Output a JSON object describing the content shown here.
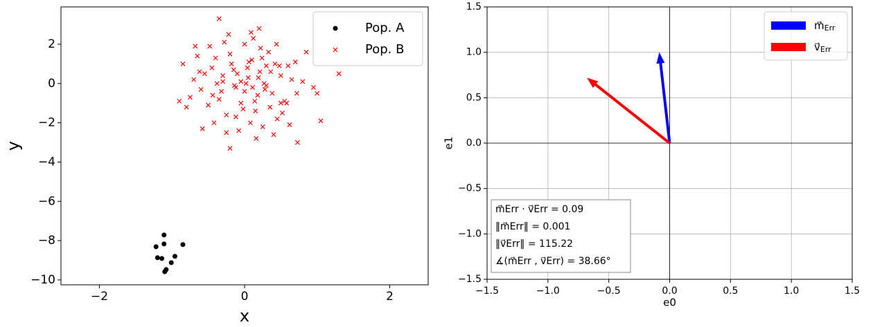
{
  "chart_data": [
    {
      "type": "scatter",
      "xlabel": "x",
      "ylabel": "y",
      "xlim": [
        -2.53,
        2.53
      ],
      "ylim": [
        -10.25,
        3.9
      ],
      "xticks": [
        {
          "value": -2,
          "label": "−2"
        },
        0,
        2
      ],
      "yticks": [
        {
          "value": -10,
          "label": "−10"
        },
        {
          "value": -8,
          "label": "−8"
        },
        {
          "value": -6,
          "label": "−6"
        },
        {
          "value": -4,
          "label": "−4"
        },
        {
          "value": -2,
          "label": "−2"
        },
        0,
        2
      ],
      "legend": "upper right",
      "grid": false,
      "series": [
        {
          "name": "Pop. A",
          "color": "#000000",
          "marker": "o",
          "x": [
            -1.22,
            -1.11,
            -1.11,
            -0.85,
            -1.2,
            -1.14,
            -0.96,
            -1.01,
            -1.08,
            -1.1
          ],
          "values": [
            -8.31,
            -7.71,
            -8.17,
            -8.2,
            -8.87,
            -8.91,
            -8.8,
            -9.12,
            -9.47,
            -9.58
          ]
        },
        {
          "name": "Pop. B",
          "color": "#ff0000",
          "marker": "x",
          "x": [
            0.05,
            -0.12,
            0.21,
            -0.3,
            0.38,
            -0.45,
            0.1,
            -0.05,
            0.27,
            -0.2,
            0.5,
            -0.6,
            0.15,
            -0.35,
            0.42,
            0.0,
            -0.1,
            0.3,
            -0.25,
            0.6,
            -0.7,
            0.08,
            0.22,
            -0.4,
            0.35,
            -0.15,
            0.18,
            -0.5,
            0.45,
            0.12,
            -0.08,
            0.55,
            -0.28,
            0.02,
            0.25,
            -0.55,
            0.65,
            -0.32,
            0.14,
            -0.18,
            0.33,
            -0.42,
            0.48,
            -0.02,
            0.09,
            -0.65,
            0.72,
            0.4,
            -0.22,
            0.06,
            -0.75,
            0.8,
            0.28,
            -0.38,
            0.52,
            -0.12,
            0.19,
            -0.48,
            0.0,
            0.36,
            -0.8,
            0.95,
            1.05,
            1.3,
            0.73,
            -0.35,
            -0.2,
            0.2,
            -0.85,
            0.85,
            0.62,
            -0.58,
            0.44,
            -0.05,
            0.11,
            -0.3,
            0.24,
            -0.44,
            0.16,
            -0.62,
            0.58,
            0.04,
            -0.14,
            0.3,
            -0.9,
            1.0,
            0.5,
            -0.25,
            0.7,
            -0.68
          ],
          "values": [
            0.3,
            -0.2,
            0.6,
            0.1,
            -0.5,
            0.8,
            1.2,
            -1.0,
            0.0,
            1.5,
            0.4,
            -0.3,
            -1.4,
            -0.8,
            1.0,
            2.0,
            0.5,
            -0.1,
            -1.6,
            0.9,
            0.2,
            -2.0,
            1.8,
            1.3,
            -1.2,
            0.7,
            -0.6,
            -1.1,
            -1.8,
            2.3,
            -2.4,
            -0.9,
            2.1,
            0.0,
            -2.2,
            0.5,
            0.2,
            -0.4,
            -0.9,
            1.0,
            1.6,
            -2.0,
            0.9,
            -1.3,
            2.6,
            1.4,
            -0.5,
            -2.6,
            2.5,
            1.1,
            -0.7,
            0.1,
            -0.3,
            0.0,
            -1.5,
            -1.7,
            0.3,
            1.9,
            -0.4,
            0.6,
            -1.2,
            -0.2,
            -1.9,
            0.5,
            -3.0,
            3.3,
            -3.3,
            2.8,
            1.0,
            1.6,
            -2.1,
            -2.3,
            2.0,
            0.1,
            -0.2,
            0.4,
            1.3,
            -0.6,
            -2.8,
            0.6,
            -1.0,
            0.8,
            -0.1,
            0.9,
            -0.9,
            -0.5,
            -1.0,
            -2.5,
            1.1,
            1.9
          ]
        }
      ]
    },
    {
      "type": "quiver",
      "xlabel": "e0",
      "ylabel": "e1",
      "xlim": [
        -1.5,
        1.5
      ],
      "ylim": [
        -1.5,
        1.5
      ],
      "xticks": [
        {
          "value": -1.5,
          "label": "−1.5"
        },
        {
          "value": -1.0,
          "label": "−1.0"
        },
        {
          "value": -0.5,
          "label": "−0.5"
        },
        {
          "value": 0.0,
          "label": "0.0"
        },
        0.5,
        {
          "value": 1.0,
          "label": "1.0"
        },
        1.5
      ],
      "yticks": [
        {
          "value": -1.5,
          "label": "−1.5"
        },
        {
          "value": -1.0,
          "label": "−1.0"
        },
        {
          "value": -0.5,
          "label": "−0.5"
        },
        {
          "value": 0.0,
          "label": "0.0"
        },
        0.5,
        {
          "value": 1.0,
          "label": "1.0"
        },
        1.5
      ],
      "legend": "upper right",
      "grid": true,
      "series": [
        {
          "name": {
            "base": "m⃗",
            "sub": "Err"
          },
          "color": "#0000ff",
          "values": [
            -0.085,
            1.0
          ]
        },
        {
          "name": {
            "base": "v⃗",
            "sub": "Err"
          },
          "color": "#ff0000",
          "values": [
            -0.68,
            0.72
          ]
        }
      ],
      "annotation": [
        "m⃗Err · v⃗Err = 0.09",
        "‖m⃗Err‖ = 0.001",
        "‖v⃗Err‖ = 115.22",
        "∡(m⃗Err , v⃗Err) = 38.66°"
      ]
    }
  ]
}
